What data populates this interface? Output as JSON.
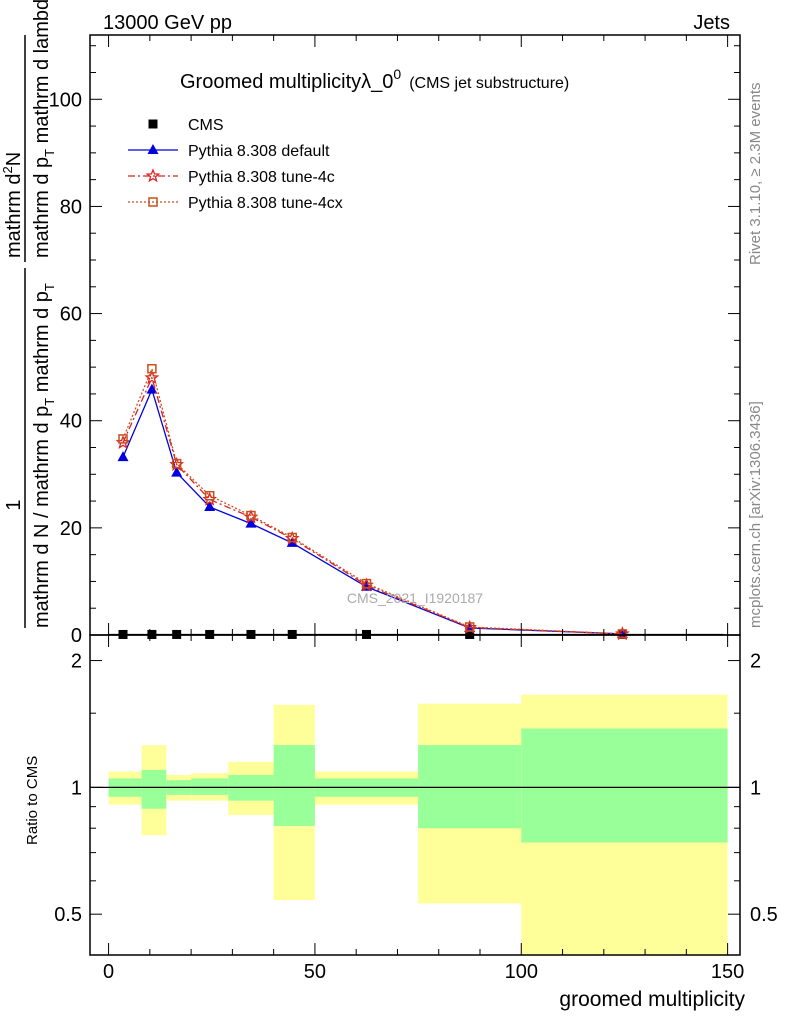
{
  "header": {
    "left": "13000 GeV pp",
    "right": "Jets"
  },
  "side_text": {
    "rivet": "Rivet 3.1.10, ≥ 2.3M events",
    "mcplots": "mcplots.cern.ch [arXiv:1306.3436]"
  },
  "watermark": "CMS_2021_I1920187",
  "chart_data": [
    {
      "type": "line",
      "title_main": "Groomed multiplicityλ_0",
      "title_sup": "0",
      "title_note": "(CMS jet substructure)",
      "ylabel_upper_num": "mathrm d",
      "ylabel_upper_sup": "2",
      "ylabel_upper_num2": "N",
      "ylabel_upper_den": "mathrm d p",
      "ylabel_upper_den_sub": "T",
      "ylabel_upper_den2": " mathrm d lambda",
      "ylabel_lower_num": "1",
      "ylabel_lower_den": "mathrm d N / mathrm d p",
      "ylabel_lower_den_sub": "T",
      "ylabel_lower_den2": " mathrm d p",
      "ylabel_lower_den2_sub": "T",
      "xlim": [
        -4.5,
        153
      ],
      "ylim": [
        0,
        112
      ],
      "yticks": [
        0,
        20,
        40,
        60,
        80,
        100
      ],
      "ytick_labels": [
        "0",
        "20",
        "40",
        "60",
        "80",
        "100"
      ],
      "legend_position": "top-left",
      "series": [
        {
          "name": "CMS",
          "color": "#000000",
          "marker": "square",
          "x": [
            3.5,
            10.5,
            16.5,
            24.5,
            34.5,
            44.5,
            62.5,
            87.5,
            124.5
          ],
          "y": [
            0.1,
            0.1,
            0.1,
            0.1,
            0.1,
            0.1,
            0.1,
            0.1,
            0.1
          ],
          "x_err": [
            3.5,
            3.5,
            2.5,
            5.5,
            4.5,
            5.5,
            12.5,
            12.5,
            24.5
          ]
        },
        {
          "name": "Pythia 8.308 default",
          "color": "#0000dd",
          "marker": "triangle",
          "line": "solid",
          "x": [
            3.5,
            10.5,
            16.5,
            24.5,
            34.5,
            44.5,
            62.5,
            87.5,
            124.5
          ],
          "y": [
            33.2,
            45.8,
            30.3,
            23.9,
            20.8,
            17.2,
            9.0,
            1.3,
            0.2
          ]
        },
        {
          "name": "Pythia 8.308 tune-4c",
          "color": "#dd2222",
          "marker": "star",
          "line": "dashdot",
          "x": [
            3.5,
            10.5,
            16.5,
            24.5,
            34.5,
            44.5,
            62.5,
            87.5,
            124.5
          ],
          "y": [
            35.9,
            48.0,
            31.8,
            25.3,
            22.0,
            18.0,
            9.3,
            1.4,
            0.2
          ]
        },
        {
          "name": "Pythia 8.308 tune-4cx",
          "color": "#c8501e",
          "marker": "open-square",
          "line": "dotted",
          "x": [
            3.5,
            10.5,
            16.5,
            24.5,
            34.5,
            44.5,
            62.5,
            87.5,
            124.5
          ],
          "y": [
            36.6,
            49.7,
            32.0,
            26.0,
            22.3,
            18.2,
            9.6,
            1.5,
            0.2
          ]
        }
      ]
    },
    {
      "type": "area",
      "ylabel": "Ratio to CMS",
      "xlabel": "groomed multiplicity",
      "xlim": [
        -4.5,
        153
      ],
      "ylim_log": [
        0.4,
        2.3
      ],
      "xticks": [
        0,
        50,
        100,
        150
      ],
      "xtick_labels": [
        "0",
        "50",
        "100",
        "150"
      ],
      "yticks": [
        0.5,
        1,
        2
      ],
      "ytick_labels": [
        "0.5",
        "1",
        "2"
      ],
      "reference_line": 1,
      "bands": {
        "x_edges": [
          0,
          8,
          14,
          20,
          29,
          40,
          50,
          75,
          100,
          150
        ],
        "inner_color": "#99ff99",
        "outer_color": "#ffff99",
        "inner_low": [
          0.95,
          0.89,
          0.96,
          0.96,
          0.93,
          0.81,
          0.95,
          0.8,
          0.74
        ],
        "inner_high": [
          1.05,
          1.1,
          1.04,
          1.05,
          1.07,
          1.26,
          1.05,
          1.26,
          1.38
        ],
        "outer_low": [
          0.91,
          0.77,
          0.93,
          0.93,
          0.86,
          0.54,
          0.91,
          0.53,
          0.34
        ],
        "outer_high": [
          1.09,
          1.26,
          1.07,
          1.08,
          1.15,
          1.57,
          1.09,
          1.58,
          1.66
        ]
      }
    }
  ]
}
